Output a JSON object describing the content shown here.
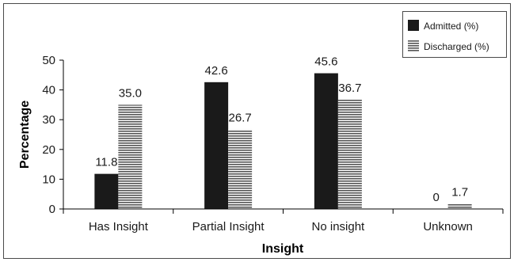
{
  "chart_data": {
    "type": "bar",
    "categories": [
      "Has Insight",
      "Partial Insight",
      "No insight",
      "Unknown"
    ],
    "series": [
      {
        "name": "Admitted (%)",
        "values": [
          11.8,
          42.6,
          45.6,
          0
        ],
        "labels": [
          "11.8",
          "42.6",
          "45.6",
          "0"
        ],
        "color": "#1a1a1a",
        "pattern": "solid"
      },
      {
        "name": "Discharged (%)",
        "values": [
          35.0,
          26.7,
          36.7,
          1.7
        ],
        "labels": [
          "35.0",
          "26.7",
          "36.7",
          "1.7"
        ],
        "color": "#555555",
        "pattern": "horizontal-stripes"
      }
    ],
    "xlabel": "Insight",
    "ylabel": "Percentage",
    "ylim": [
      0,
      50
    ],
    "yticks": [
      0,
      10,
      20,
      30,
      40,
      50
    ],
    "grid": false,
    "legend": "top-right"
  }
}
